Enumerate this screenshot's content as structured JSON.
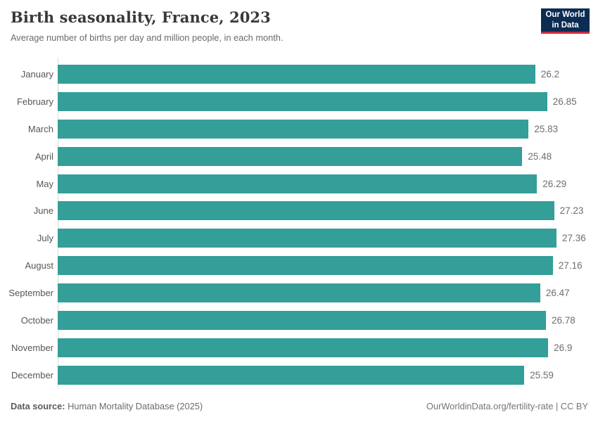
{
  "header": {
    "title": "Birth seasonality, France, 2023",
    "subtitle": "Average number of births per day and million people, in each month.",
    "logo": {
      "line1": "Our World",
      "line2": "in Data"
    }
  },
  "chart_data": {
    "type": "bar",
    "orientation": "horizontal",
    "title": "Birth seasonality, France, 2023",
    "subtitle": "Average number of births per day and million people, in each month.",
    "categories": [
      "January",
      "February",
      "March",
      "April",
      "May",
      "June",
      "July",
      "August",
      "September",
      "October",
      "November",
      "December"
    ],
    "values": [
      26.2,
      26.85,
      25.83,
      25.48,
      26.29,
      27.23,
      27.36,
      27.16,
      26.47,
      26.78,
      26.9,
      25.59
    ],
    "value_labels": [
      "26.2",
      "26.85",
      "25.83",
      "25.48",
      "26.29",
      "27.23",
      "27.36",
      "27.16",
      "26.47",
      "26.78",
      "26.9",
      "25.59"
    ],
    "xlim": [
      0,
      27.36
    ],
    "grid": false,
    "legend": "none",
    "value_labels_shown": true
  },
  "footer": {
    "source_label": "Data source:",
    "source_value": "Human Mortality Database (2025)",
    "link": "OurWorldinData.org/fertility-rate | CC BY"
  },
  "colors": {
    "bar": "#349e98",
    "logo_bg": "#0d2c53",
    "logo_accent": "#cc2b3f",
    "axis": "#dadada"
  }
}
